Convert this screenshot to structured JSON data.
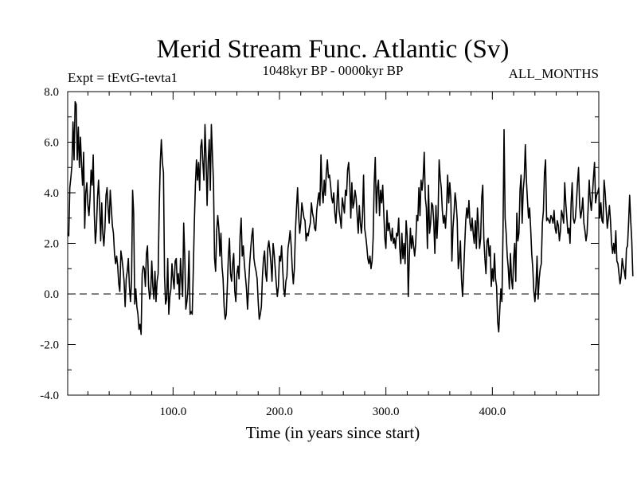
{
  "chart_data": {
    "type": "line",
    "title": "Merid Stream Func. Atlantic (Sv)",
    "subtitle_left": "Expt = tEvtG-tevta1",
    "subtitle_center": "1048kyr BP - 0000kyr BP",
    "subtitle_right": "ALL_MONTHS",
    "xlabel": "Time (in years since start)",
    "ylabel": "",
    "xlim": [
      1,
      500
    ],
    "ylim": [
      -4,
      8
    ],
    "xticks": [
      100,
      200,
      300,
      400
    ],
    "xtick_labels": [
      "100.0",
      "200.0",
      "300.0",
      "400.0"
    ],
    "yticks": [
      -4,
      -2,
      0,
      2,
      4,
      6,
      8
    ],
    "ytick_labels": [
      "-4.0",
      "-2.0",
      "0.0",
      "2.0",
      "4.0",
      "6.0",
      "8.0"
    ],
    "reference_line": {
      "y": 0,
      "style": "dashed"
    },
    "series": [
      {
        "name": "Merid Stream Func. Atlantic",
        "x_start": 1,
        "x_step": 1,
        "values": [
          2.4,
          2.3,
          4.2,
          4.6,
          5.1,
          6.8,
          5.3,
          7.6,
          7.5,
          5.3,
          6.6,
          5.0,
          6.2,
          5.1,
          4.3,
          5.6,
          2.6,
          4.0,
          4.4,
          3.5,
          3.1,
          3.8,
          4.9,
          4.3,
          5.5,
          3.2,
          2.0,
          2.6,
          3.8,
          4.5,
          3.5,
          2.1,
          3.6,
          2.4,
          1.9,
          2.6,
          3.9,
          4.2,
          3.4,
          2.8,
          4.1,
          3.4,
          2.7,
          2.4,
          1.6,
          1.2,
          1.5,
          1.1,
          0.4,
          0.1,
          1.7,
          1.4,
          1.0,
          0.5,
          -0.5,
          0.6,
          0.9,
          1.4,
          0.3,
          -0.3,
          0.5,
          4.1,
          3.2,
          -0.4,
          0.2,
          -0.5,
          -0.8,
          -1.4,
          -1.2,
          -1.6,
          0.8,
          1.1,
          1.0,
          0.3,
          1.6,
          1.9,
          0.3,
          -0.2,
          0.1,
          1.3,
          0.3,
          -0.2,
          0.9,
          -0.3,
          0.5,
          0.8,
          3.4,
          5.2,
          6.1,
          5.2,
          4.8,
          0.7,
          -0.4,
          -0.2,
          1.4,
          -0.8,
          -0.1,
          0.2,
          1.2,
          0.6,
          0.2,
          1.3,
          1.4,
          0.4,
          0.8,
          -0.2,
          1.4,
          0.6,
          -0.1,
          2.8,
          1.5,
          -0.6,
          -0.3,
          0.2,
          1.7,
          -0.8,
          -0.7,
          -0.8,
          0.9,
          2.8,
          4.3,
          5.3,
          4.5,
          5.2,
          4.1,
          5.8,
          6.1,
          5.2,
          4.5,
          6.7,
          5.4,
          3.5,
          5.2,
          6.1,
          4.1,
          6.7,
          5.5,
          4.4,
          1.4,
          0.9,
          2.5,
          3.1,
          2.6,
          1.5,
          2.4,
          1.1,
          0.6,
          -0.5,
          -1.0,
          -0.8,
          0.3,
          1.5,
          2.2,
          0.8,
          0.5,
          1.2,
          1.6,
          0.1,
          -0.3,
          0.8,
          1.1,
          0.6,
          2.3,
          3.0,
          1.5,
          1.9,
          1.2,
          0.7,
          0.2,
          -0.6,
          0.3,
          1.2,
          1.8,
          2.3,
          2.6,
          1.4,
          1.1,
          0.9,
          0.6,
          -0.3,
          -1.0,
          -0.8,
          -0.5,
          0.7,
          1.4,
          1.7,
          0.8,
          0.5,
          1.8,
          2.1,
          1.7,
          1.2,
          0.5,
          2.0,
          1.6,
          1.0,
          0.4,
          -0.1,
          0.3,
          1.5,
          1.3,
          1.9,
          1.0,
          0.2,
          -0.1,
          0.5,
          0.7,
          1.8,
          2.1,
          2.5,
          1.9,
          1.0,
          0.4,
          1.0,
          2.5,
          3.4,
          4.2,
          3.1,
          2.4,
          2.8,
          3.6,
          3.3,
          3.0,
          2.9,
          2.1,
          2.4,
          2.3,
          2.6,
          2.8,
          3.6,
          3.2,
          3.0,
          2.6,
          2.5,
          3.3,
          3.7,
          4.0,
          3.5,
          5.5,
          4.1,
          3.6,
          4.5,
          3.9,
          4.8,
          5.3,
          4.6,
          4.7,
          4.3,
          3.8,
          3.6,
          4.0,
          3.2,
          2.8,
          3.6,
          4.5,
          3.3,
          3.0,
          2.6,
          3.8,
          3.5,
          3.2,
          4.1,
          3.9,
          4.9,
          5.2,
          4.4,
          3.0,
          4.4,
          3.4,
          3.6,
          4.1,
          3.8,
          3.1,
          2.4,
          3.5,
          2.8,
          2.4,
          3.1,
          4.7,
          2.6,
          2.3,
          1.9,
          1.4,
          1.2,
          1.5,
          1.0,
          1.3,
          2.2,
          4.4,
          5.4,
          3.2,
          4.2,
          4.5,
          3.1,
          4.1,
          3.6,
          4.3,
          3.2,
          2.2,
          1.8,
          3.3,
          2.5,
          2.8,
          2.4,
          2.1,
          2.6,
          2.0,
          2.2,
          1.8,
          2.4,
          2.3,
          3.0,
          1.8,
          1.2,
          2.4,
          1.4,
          2.0,
          1.2,
          2.9,
          2.3,
          -0.1,
          1.5,
          2.6,
          1.8,
          2.3,
          1.9,
          1.5,
          2.0,
          3.1,
          2.9,
          4.2,
          3.1,
          4.5,
          4.1,
          4.6,
          5.6,
          3.8,
          3.4,
          1.8,
          4.3,
          2.4,
          2.8,
          3.6,
          3.5,
          2.8,
          1.6,
          3.5,
          2.2,
          3.1,
          5.3,
          4.6,
          4.2,
          3.3,
          2.8,
          3.1,
          2.6,
          3.4,
          4.7,
          3.6,
          4.4,
          3.8,
          1.3,
          2.6,
          3.2,
          4.0,
          3.6,
          2.9,
          1.0,
          1.4,
          2.1,
          0.6,
          -0.1,
          0.8,
          1.9,
          2.9,
          3.4,
          3.0,
          3.7,
          2.8,
          2.5,
          3.0,
          2.4,
          2.0,
          2.9,
          1.8,
          3.4,
          2.7,
          1.8,
          2.2,
          3.8,
          4.3,
          2.2,
          1.4,
          0.8,
          2.1,
          2.2,
          1.5,
          1.9,
          0.3,
          1.0,
          0.5,
          1.6,
          0.6,
          0.3,
          -1.1,
          -1.5,
          -0.6,
          0.2,
          -0.3,
          2.4,
          6.5,
          3.0,
          2.4,
          1.5,
          1.0,
          0.2,
          1.6,
          0.6,
          0.2,
          1.4,
          2.0,
          0.5,
          3.2,
          2.1,
          2.4,
          4.1,
          4.7,
          2.8,
          4.1,
          4.6,
          5.9,
          4.5,
          3.7,
          3.0,
          3.4,
          2.6,
          1.6,
          1.0,
          0.1,
          -0.3,
          0.3,
          1.5,
          -0.2,
          0.6,
          1.0,
          1.2,
          2.8,
          3.3,
          4.8,
          5.3,
          2.9,
          3.0,
          2.9,
          2.8,
          3.1,
          3.0,
          2.8,
          3.3,
          2.6,
          2.4,
          2.9,
          2.7,
          2.1,
          2.5,
          3.3,
          3.1,
          2.8,
          4.4,
          3.6,
          3.0,
          2.4,
          2.6,
          2.0,
          3.6,
          4.4,
          3.0,
          2.8,
          3.0,
          3.6,
          4.4,
          5.0,
          3.5,
          3.0,
          3.3,
          3.8,
          2.8,
          2.5,
          2.1,
          2.4,
          3.4,
          4.5,
          3.7,
          3.3,
          3.9,
          4.6,
          5.2,
          3.6,
          3.9,
          4.0,
          4.2,
          3.0,
          3.6,
          2.9,
          2.8,
          4.5,
          4.0,
          3.3,
          2.6,
          3.0,
          3.5,
          2.9,
          2.0,
          1.6,
          2.0,
          1.6,
          2.5,
          1.3,
          1.2,
          0.8,
          0.4,
          0.7,
          1.4,
          1.1,
          0.9,
          0.6,
          1.8,
          1.9,
          2.8,
          3.9,
          2.9,
          2.1,
          0.7
        ]
      }
    ]
  }
}
